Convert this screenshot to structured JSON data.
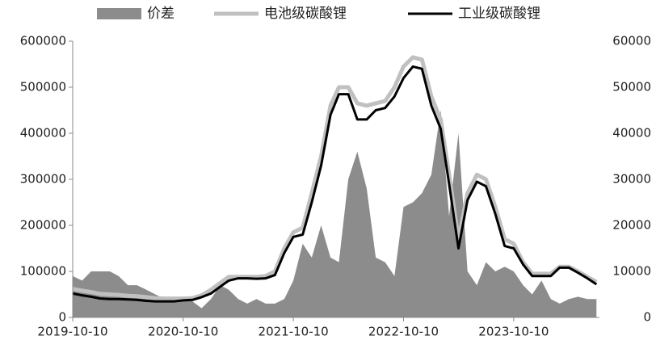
{
  "chart_data": {
    "type": "area-line",
    "x": [
      "2019-10-10",
      "2019-11-10",
      "2019-12-10",
      "2020-01-10",
      "2020-02-10",
      "2020-03-10",
      "2020-04-10",
      "2020-05-10",
      "2020-06-10",
      "2020-07-10",
      "2020-08-10",
      "2020-09-10",
      "2020-10-10",
      "2020-11-10",
      "2020-12-10",
      "2021-01-10",
      "2021-02-10",
      "2021-03-10",
      "2021-04-10",
      "2021-05-10",
      "2021-06-10",
      "2021-07-10",
      "2021-08-10",
      "2021-09-10",
      "2021-10-10",
      "2021-11-10",
      "2021-12-10",
      "2022-01-10",
      "2022-02-10",
      "2022-03-10",
      "2022-04-10",
      "2022-05-10",
      "2022-06-10",
      "2022-07-10",
      "2022-08-10",
      "2022-09-10",
      "2022-10-10",
      "2022-11-10",
      "2022-12-10",
      "2023-01-10",
      "2023-02-10",
      "2023-03-10",
      "2023-04-10",
      "2023-05-10",
      "2023-06-10",
      "2023-07-10",
      "2023-08-10",
      "2023-09-10",
      "2023-10-10",
      "2023-11-10",
      "2023-12-10",
      "2024-01-10",
      "2024-02-10",
      "2024-03-10",
      "2024-04-10",
      "2024-05-10",
      "2024-06-10",
      "2024-07-10"
    ],
    "series": [
      {
        "name": "价差",
        "color": "#8c8c8c",
        "axis": "y2",
        "kind": "area",
        "values": [
          9000,
          8000,
          10000,
          10000,
          10000,
          9000,
          7000,
          7000,
          6000,
          5000,
          4000,
          4500,
          4000,
          3500,
          2000,
          4000,
          7000,
          6000,
          4000,
          3000,
          4000,
          3000,
          3000,
          4000,
          8000,
          16000,
          13000,
          20000,
          13000,
          12000,
          30000,
          36000,
          28000,
          13000,
          12000,
          9000,
          24000,
          25000,
          27000,
          31000,
          45000,
          22000,
          40000,
          10000,
          7000,
          12000,
          10000,
          11000,
          10000,
          7000,
          5000,
          8000,
          4000,
          3000,
          4000,
          4500,
          4000,
          4000
        ]
      },
      {
        "name": "电池级碳酸锂",
        "color": "#c0c0c0",
        "kind": "line",
        "width": 5,
        "values": [
          62000,
          58000,
          55000,
          51000,
          50000,
          49000,
          47000,
          46000,
          44000,
          42000,
          41000,
          41000,
          41000,
          42000,
          48000,
          60000,
          75000,
          88000,
          88000,
          88000,
          88000,
          90000,
          100000,
          150000,
          185000,
          195000,
          270000,
          350000,
          460000,
          500000,
          500000,
          465000,
          460000,
          465000,
          470000,
          500000,
          545000,
          565000,
          560000,
          480000,
          430000,
          310000,
          170000,
          270000,
          310000,
          300000,
          240000,
          170000,
          160000,
          120000,
          95000,
          95000,
          95000,
          110000,
          110000,
          100000,
          88000,
          77000
        ]
      },
      {
        "name": "工业级碳酸锂",
        "color": "#000000",
        "kind": "line",
        "width": 3,
        "values": [
          52000,
          48000,
          45000,
          41000,
          40000,
          40000,
          39000,
          38000,
          36000,
          35000,
          35000,
          35000,
          37000,
          38000,
          44000,
          52000,
          67000,
          80000,
          85000,
          85000,
          84000,
          85000,
          92000,
          140000,
          175000,
          180000,
          250000,
          330000,
          440000,
          485000,
          485000,
          430000,
          430000,
          450000,
          455000,
          480000,
          520000,
          545000,
          540000,
          460000,
          410000,
          290000,
          150000,
          255000,
          295000,
          285000,
          225000,
          155000,
          150000,
          115000,
          90000,
          90000,
          90000,
          108000,
          108000,
          97000,
          85000,
          72000
        ]
      }
    ],
    "xlim": [
      "2019-10-10",
      "2024-07-20"
    ],
    "xticks": [
      "2019-10-10",
      "2020-10-10",
      "2021-10-10",
      "2022-10-10",
      "2023-10-10"
    ],
    "ylim": [
      0,
      600000
    ],
    "yticks": [
      0,
      100000,
      200000,
      300000,
      400000,
      500000,
      600000
    ],
    "y2lim": [
      0,
      60000
    ],
    "y2ticks": [
      0,
      10000,
      20000,
      30000,
      40000,
      50000,
      60000
    ],
    "grid": false
  }
}
